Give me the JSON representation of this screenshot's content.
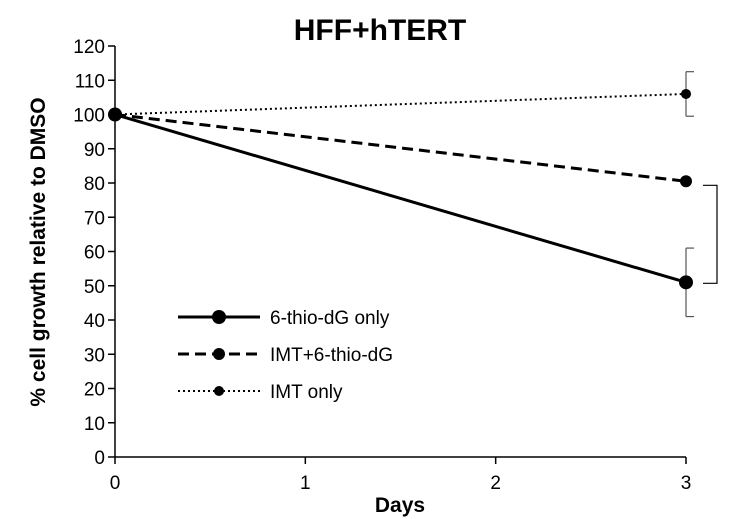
{
  "chart_data": {
    "type": "line",
    "title": "HFF+hTERT",
    "xlabel": "Days",
    "ylabel": "% cell growth relative to DMSO",
    "x": [
      0,
      3
    ],
    "xlim": [
      0,
      3
    ],
    "ylim": [
      0,
      120
    ],
    "xticks": [
      "0",
      "1",
      "2",
      "3"
    ],
    "yticks": [
      "0",
      "10",
      "20",
      "30",
      "40",
      "50",
      "60",
      "70",
      "80",
      "90",
      "100",
      "110",
      "120"
    ],
    "grid": false,
    "legend_position": "bottom-left",
    "series": [
      {
        "name": "6-thio-dG only",
        "values": [
          100,
          51
        ],
        "error": [
          0,
          10
        ],
        "line_style": "solid",
        "marker": "circle-large",
        "color": "#000000"
      },
      {
        "name": "IMT+6-thio-dG",
        "values": [
          100,
          80.5
        ],
        "error": [
          0,
          0
        ],
        "line_style": "dashed",
        "marker": "circle",
        "color": "#000000"
      },
      {
        "name": "IMT only",
        "values": [
          100,
          106
        ],
        "error": [
          0,
          6.5
        ],
        "line_style": "dotted",
        "marker": "circle-small",
        "color": "#000000"
      }
    ],
    "annotations": [
      {
        "text": "**",
        "between_series": [
          "6-thio-dG only",
          "IMT+6-thio-dG"
        ],
        "at_x": 3
      }
    ]
  }
}
